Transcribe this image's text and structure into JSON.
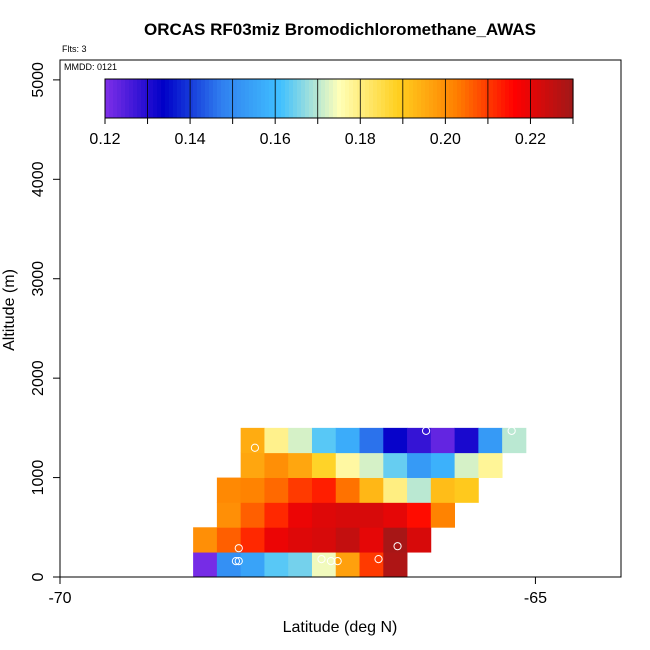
{
  "chart_data": {
    "type": "heatmap",
    "title": "ORCAS RF03miz Bromodichloromethane_AWAS",
    "flights_note": "Flts: 3",
    "mmdd_note": "MMDD: 0121",
    "xlabel": "Latitude (deg N)",
    "ylabel": "Altitude (m)",
    "xlim": [
      -70,
      -64.1
    ],
    "ylim": [
      0,
      5200
    ],
    "x_ticks": [
      -70,
      -65
    ],
    "y_ticks": [
      0,
      1000,
      2000,
      3000,
      4000,
      5000
    ],
    "cell_lat_width": 0.25,
    "cell_alt_height": 250,
    "colorbar": {
      "min": 0.12,
      "max": 0.23,
      "ticks": [
        "0.12",
        "0.14",
        "0.16",
        "0.18",
        "0.20",
        "0.22"
      ],
      "tick_values": [
        0.12,
        0.14,
        0.16,
        0.18,
        0.2,
        0.22
      ],
      "colors": [
        "#7f2fe8",
        "#0000c8",
        "#3080f0",
        "#40c0ff",
        "#ffffb8",
        "#ffd020",
        "#ff8000",
        "#ff0000",
        "#a01818"
      ]
    },
    "rows": [
      {
        "alt": 0,
        "lat_start": -68.6,
        "values": [
          0.121,
          0.151,
          0.155,
          0.163,
          0.165,
          0.174,
          0.197,
          0.21,
          0.228
        ]
      },
      {
        "alt": 250,
        "lat_start": -68.6,
        "values": [
          0.2,
          0.206,
          0.212,
          0.219,
          0.221,
          0.222,
          0.225,
          0.22,
          0.229,
          0.222
        ]
      },
      {
        "alt": 500,
        "lat_start": -68.35,
        "values": [
          0.2,
          0.206,
          0.212,
          0.219,
          0.221,
          0.222,
          0.222,
          0.22,
          0.215,
          0.202
        ]
      },
      {
        "alt": 750,
        "lat_start": -68.35,
        "values": [
          0.201,
          0.202,
          0.205,
          0.21,
          0.213,
          0.204,
          0.193,
          0.18,
          0.17,
          0.192,
          0.19
        ]
      },
      {
        "alt": 1000,
        "lat_start": -68.1,
        "values": [
          0.196,
          0.2,
          0.196,
          0.188,
          0.177,
          0.172,
          0.164,
          0.153,
          0.158,
          0.172,
          0.178
        ]
      },
      {
        "alt": 1250,
        "lat_start": -68.1,
        "values": [
          0.195,
          0.179,
          0.172,
          0.163,
          0.157,
          0.146,
          0.133,
          0.128,
          0.123,
          0.131,
          0.153,
          0.17
        ]
      }
    ],
    "sample_points": [
      {
        "lat": -68.15,
        "alt": 160
      },
      {
        "lat": -68.12,
        "alt": 160
      },
      {
        "lat": -68.12,
        "alt": 290
      },
      {
        "lat": -67.95,
        "alt": 1300
      },
      {
        "lat": -67.25,
        "alt": 180
      },
      {
        "lat": -67.15,
        "alt": 160
      },
      {
        "lat": -67.08,
        "alt": 160
      },
      {
        "lat": -66.65,
        "alt": 180
      },
      {
        "lat": -66.45,
        "alt": 310
      },
      {
        "lat": -66.15,
        "alt": 1470
      },
      {
        "lat": -65.25,
        "alt": 1470
      }
    ]
  }
}
